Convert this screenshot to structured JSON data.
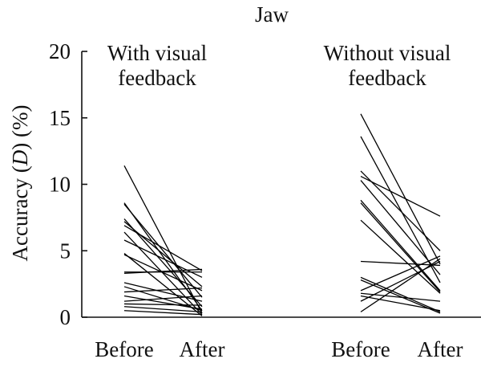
{
  "chart_data": {
    "type": "line",
    "title": "Jaw",
    "ylabel": "Accuracy (D) (%)",
    "ylabel_parts": [
      "Accuracy (",
      "D",
      ") (%)"
    ],
    "ylim": [
      0,
      20
    ],
    "yticks": [
      "0",
      "5",
      "10",
      "15",
      "20"
    ],
    "grid": false,
    "categories": [
      "Before",
      "After"
    ],
    "groups": [
      {
        "label_lines": [
          "With visual",
          "feedback"
        ],
        "categories": [
          "Before",
          "After"
        ],
        "pairs": [
          [
            11.4,
            0.3
          ],
          [
            8.6,
            0.5
          ],
          [
            8.5,
            1.5
          ],
          [
            7.4,
            0.8
          ],
          [
            7.2,
            2.3
          ],
          [
            6.9,
            3.5
          ],
          [
            6.4,
            0.2
          ],
          [
            5.8,
            3.0
          ],
          [
            4.8,
            0.1
          ],
          [
            4.7,
            2.0
          ],
          [
            3.4,
            3.4
          ],
          [
            3.3,
            3.6
          ],
          [
            2.6,
            1.2
          ],
          [
            2.3,
            0.5
          ],
          [
            1.9,
            2.2
          ],
          [
            1.6,
            0.6
          ],
          [
            1.2,
            1.6
          ],
          [
            1.0,
            0.9
          ],
          [
            0.8,
            0.4
          ],
          [
            0.5,
            0.2
          ]
        ]
      },
      {
        "label_lines": [
          "Without visual",
          "feedback"
        ],
        "categories": [
          "Before",
          "After"
        ],
        "pairs": [
          [
            15.3,
            4.0
          ],
          [
            13.6,
            2.6
          ],
          [
            11.0,
            5.0
          ],
          [
            10.6,
            7.6
          ],
          [
            10.3,
            3.2
          ],
          [
            8.8,
            2.0
          ],
          [
            8.6,
            1.9
          ],
          [
            7.3,
            1.8
          ],
          [
            4.2,
            3.9
          ],
          [
            3.0,
            0.4
          ],
          [
            2.8,
            0.3
          ],
          [
            2.0,
            4.6
          ],
          [
            1.8,
            1.2
          ],
          [
            1.6,
            0.5
          ],
          [
            1.2,
            4.2
          ],
          [
            0.4,
            4.4
          ]
        ]
      }
    ]
  }
}
